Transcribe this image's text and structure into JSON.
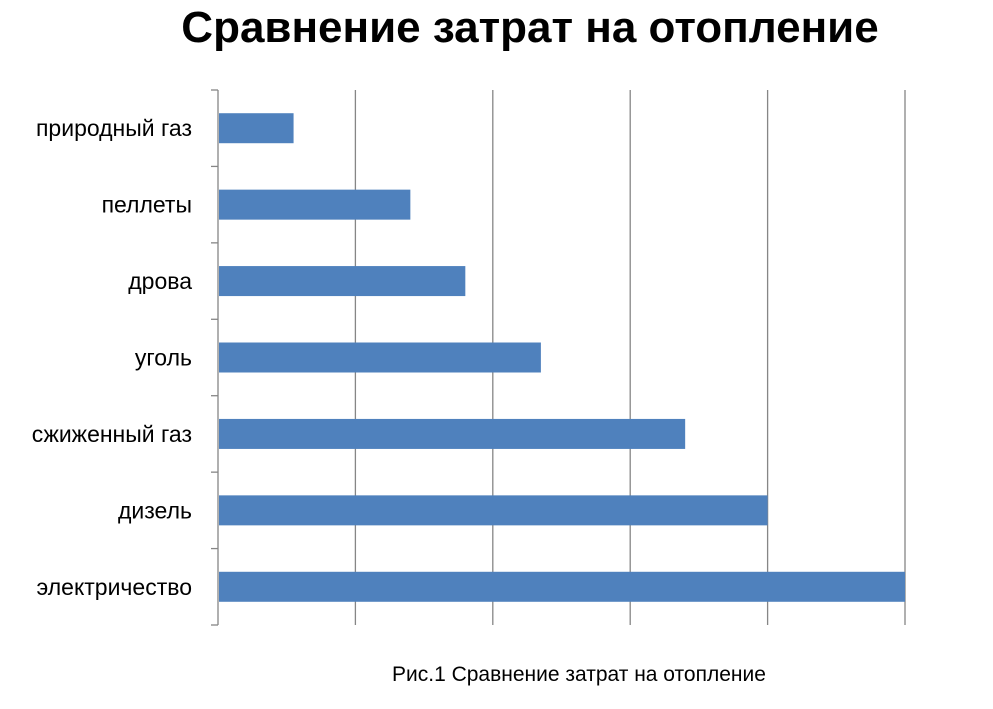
{
  "chart_data": {
    "type": "bar",
    "orientation": "horizontal",
    "title": "Сравнение затрат на отопление",
    "categories": [
      "природный газ",
      "пеллеты",
      "дрова",
      "уголь",
      "сжиженный газ",
      "дизель",
      "электричество"
    ],
    "values": [
      1.1,
      2.8,
      3.6,
      4.7,
      6.8,
      8.0,
      10.0
    ],
    "xlim": [
      0,
      10
    ],
    "x_gridlines": [
      2,
      4,
      6,
      8,
      10
    ],
    "x_tick_labels_visible": false,
    "grid": true,
    "legend": "none",
    "bar_color": "#4F81BD",
    "caption": "Рис.1 Сравнение затрат на отопление"
  }
}
